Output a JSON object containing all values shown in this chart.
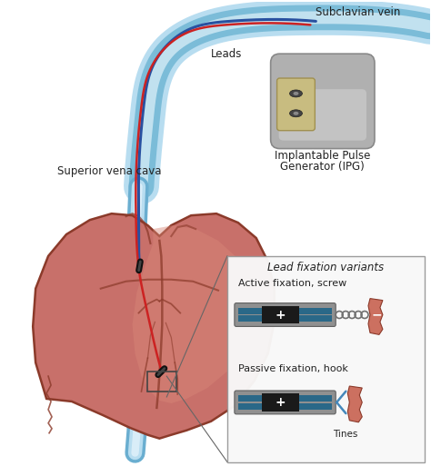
{
  "bg_color": "#ffffff",
  "heart_color": "#c8706a",
  "heart_outline": "#8b3a2a",
  "heart_light": "#d49080",
  "vein_outer": "#b8ddf0",
  "vein_mid": "#7bbcd8",
  "vein_inner": "#e0f2fa",
  "lead_blue": "#2850a0",
  "lead_red": "#cc2222",
  "ipg_gray": "#b0b0b0",
  "ipg_light": "#d0d0d0",
  "ipg_dark": "#888888",
  "ipg_conn": "#c8bc80",
  "text_color": "#222222",
  "fix_box_bg": "#f8f8f8",
  "fix_box_edge": "#999999",
  "tissue_color": "#cc7060",
  "tissue_edge": "#8b3a2a",
  "lead_gray": "#909090",
  "lead_gray_edge": "#606060",
  "lead_teal": "#2a6888",
  "lead_black": "#1a1a1a",
  "screw_color": "#707070",
  "tine_color": "#4488bb",
  "svc_blue": "#6aaed0",
  "svc_light": "#b8ddf0",
  "labels": {
    "subclavian_vein": "Subclavian vein",
    "leads": "Leads",
    "superior_vena_cava": "Superior vena cava",
    "ipg_line1": "Implantable Pulse",
    "ipg_line2": "Generator (IPG)",
    "lead_fixation": "Lead fixation variants",
    "active_fixation": "Active fixation, screw",
    "passive_fixation": "Passive fixation, hook",
    "tines": "Tines"
  }
}
